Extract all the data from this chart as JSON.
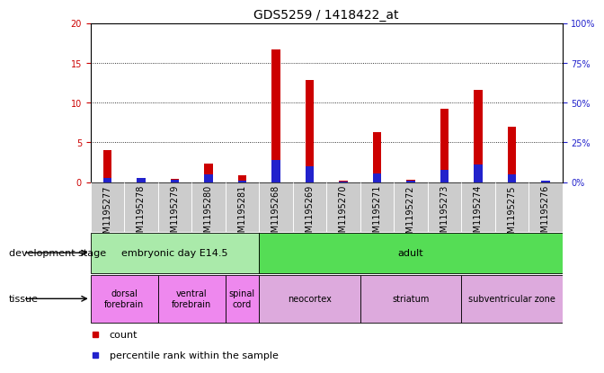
{
  "title": "GDS5259 / 1418422_at",
  "samples": [
    "GSM1195277",
    "GSM1195278",
    "GSM1195279",
    "GSM1195280",
    "GSM1195281",
    "GSM1195268",
    "GSM1195269",
    "GSM1195270",
    "GSM1195271",
    "GSM1195272",
    "GSM1195273",
    "GSM1195274",
    "GSM1195275",
    "GSM1195276"
  ],
  "count_values": [
    4.0,
    0.4,
    0.4,
    2.3,
    0.9,
    16.7,
    12.8,
    0.2,
    6.3,
    0.3,
    9.2,
    11.6,
    7.0,
    0.2
  ],
  "percentile_values": [
    0.5,
    0.5,
    0.3,
    1.0,
    0.2,
    2.8,
    2.0,
    0.1,
    1.1,
    0.2,
    1.5,
    2.2,
    1.0,
    0.2
  ],
  "count_color": "#cc0000",
  "percentile_color": "#2222cc",
  "ylim_left": [
    0,
    20
  ],
  "ylim_right": [
    0,
    100
  ],
  "yticks_left": [
    0,
    5,
    10,
    15,
    20
  ],
  "ytick_labels_left": [
    "0",
    "5",
    "10",
    "15",
    "20"
  ],
  "yticks_right": [
    0,
    25,
    50,
    75,
    100
  ],
  "ytick_labels_right": [
    "0%",
    "25%",
    "50%",
    "75%",
    "100%"
  ],
  "dev_stage_groups": [
    {
      "label": "embryonic day E14.5",
      "start": 0,
      "end": 5,
      "color": "#aaeaaa"
    },
    {
      "label": "adult",
      "start": 5,
      "end": 14,
      "color": "#55dd55"
    }
  ],
  "tissue_groups": [
    {
      "label": "dorsal\nforebrain",
      "start": 0,
      "end": 2,
      "color": "#ee88ee"
    },
    {
      "label": "ventral\nforebrain",
      "start": 2,
      "end": 4,
      "color": "#ee88ee"
    },
    {
      "label": "spinal\ncord",
      "start": 4,
      "end": 5,
      "color": "#ee88ee"
    },
    {
      "label": "neocortex",
      "start": 5,
      "end": 8,
      "color": "#ddaadd"
    },
    {
      "label": "striatum",
      "start": 8,
      "end": 11,
      "color": "#ddaadd"
    },
    {
      "label": "subventricular zone",
      "start": 11,
      "end": 14,
      "color": "#ddaadd"
    }
  ],
  "bar_width": 0.25,
  "sample_bg_color": "#cccccc",
  "plot_bg_color": "#ffffff",
  "title_fontsize": 10,
  "tick_fontsize": 7,
  "label_fontsize": 8,
  "legend_fontsize": 8
}
